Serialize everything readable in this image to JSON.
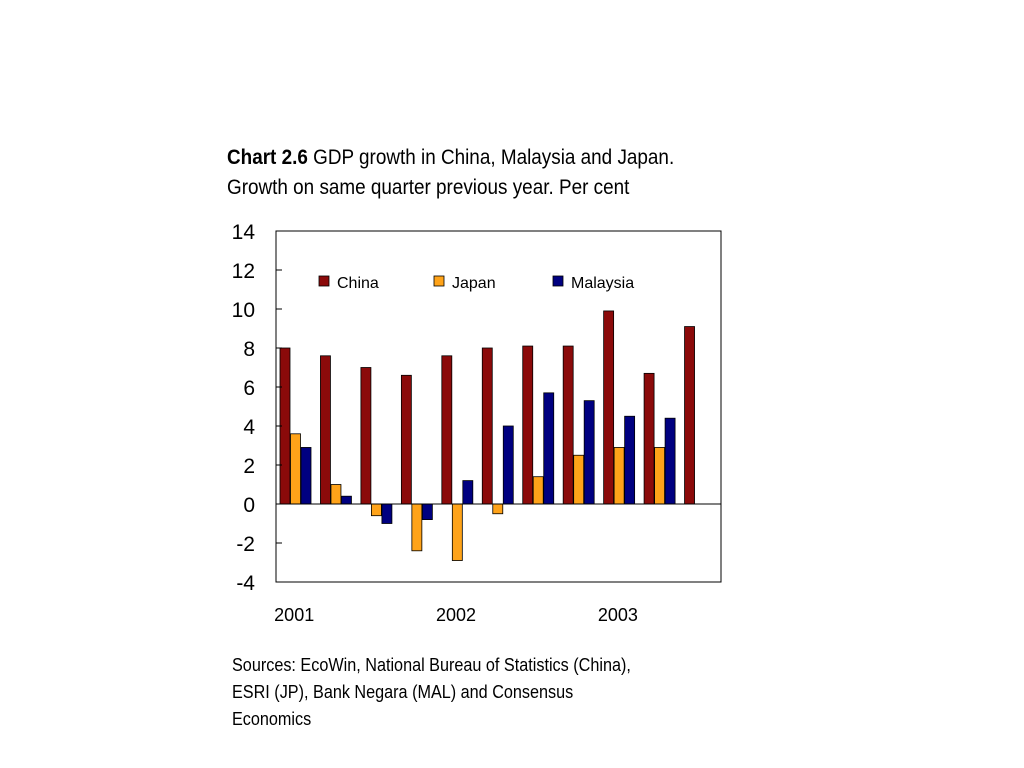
{
  "title": {
    "label": "Chart 2.6",
    "line1": "GDP growth in China, Malaysia and Japan.",
    "line2": "Growth on same quarter previous year. Per cent"
  },
  "sources": {
    "line1": "Sources: EcoWin, National Bureau of Statistics (China),",
    "line2": "ESRI (JP), Bank Negara (MAL) and Consensus",
    "line3": "Economics"
  },
  "chart_data": {
    "type": "bar",
    "categories": [
      "2001 Q1",
      "2001 Q2",
      "2001 Q3",
      "2001 Q4",
      "2002 Q1",
      "2002 Q2",
      "2002 Q3",
      "2002 Q4",
      "2003 Q1",
      "2003 Q2",
      "2003 Q3"
    ],
    "x_tick_labels": [
      "2001",
      "2002",
      "2003"
    ],
    "y_ticks": [
      14,
      12,
      10,
      8,
      6,
      4,
      2,
      0,
      -2,
      -4
    ],
    "ylim": [
      -4,
      14
    ],
    "legend_position": "top",
    "grid": false,
    "series": [
      {
        "name": "China",
        "color": "#8B0A0A",
        "values": [
          8.0,
          7.6,
          7.0,
          6.6,
          7.6,
          8.0,
          8.1,
          8.1,
          9.9,
          6.7,
          9.1
        ]
      },
      {
        "name": "Japan",
        "color": "#FFA319",
        "values": [
          3.6,
          1.0,
          -0.6,
          -2.4,
          -2.9,
          -0.5,
          1.4,
          2.5,
          2.9,
          2.9,
          null
        ]
      },
      {
        "name": "Malaysia",
        "color": "#000080",
        "values": [
          2.9,
          0.4,
          -1.0,
          -0.8,
          1.2,
          4.0,
          5.7,
          5.3,
          4.5,
          4.4,
          null
        ]
      }
    ]
  }
}
